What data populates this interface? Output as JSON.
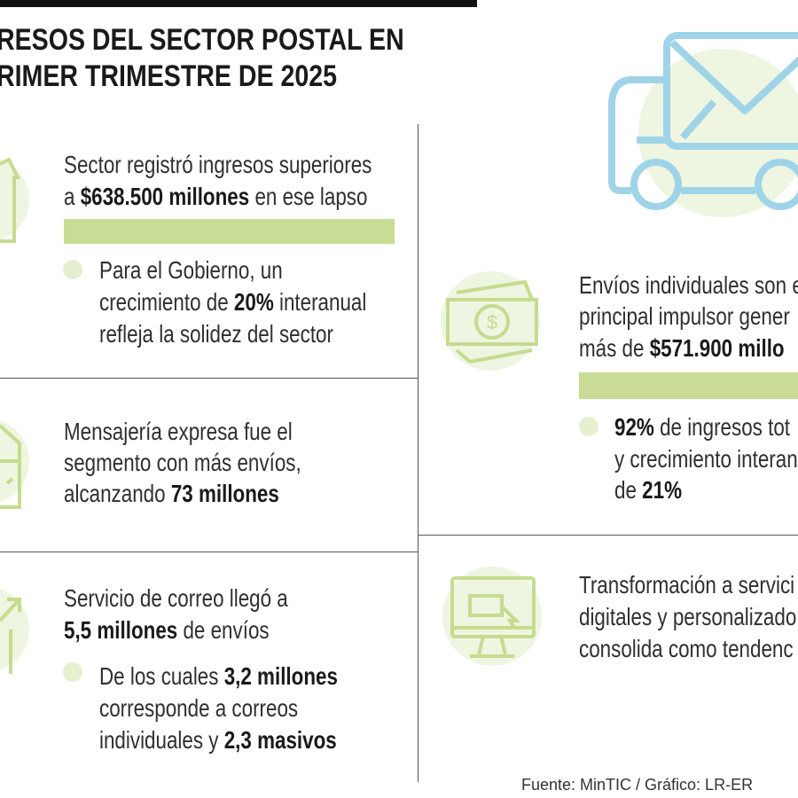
{
  "header": {
    "title_lines": [
      "RESOS DEL SECTOR POSTAL EN",
      "RIMER TRIMESTRE DE 2025"
    ]
  },
  "left": [
    {
      "lines": [
        [
          "Sector registró ingresos superiores"
        ],
        [
          "a",
          "$638.500 millones",
          "en ese lapso"
        ]
      ],
      "bullet": [
        [
          "Para el Gobierno, un"
        ],
        [
          "crecimiento de",
          "20%",
          "interanual"
        ],
        [
          "refleja la solidez del sector"
        ]
      ]
    },
    {
      "lines": [
        [
          "Mensajería expresa fue el"
        ],
        [
          "segmento con más envíos,"
        ],
        [
          "alcanzando",
          "73 millones"
        ]
      ]
    },
    {
      "lines": [
        [
          "Servicio de correo llegó a"
        ],
        [
          "5,5 millones",
          "de envíos"
        ]
      ],
      "bullet": [
        [
          "De los cuales",
          "3,2 millones"
        ],
        [
          "corresponde a correos"
        ],
        [
          "individuales y",
          "2,3 masivos"
        ]
      ]
    }
  ],
  "right": [
    {
      "lines": [
        [
          "Envíos individuales son e"
        ],
        [
          "principal impulsor gener"
        ],
        [
          "más de",
          "$571.900 millo"
        ]
      ],
      "bullet": [
        [
          "92%",
          "de ingresos tot"
        ],
        [
          "y crecimiento interan"
        ],
        [
          "de",
          "21%"
        ]
      ]
    },
    {
      "lines": [
        [
          "Transformación a servici"
        ],
        [
          "digitales y personalizado"
        ],
        [
          "consolida como tendenc"
        ]
      ]
    }
  ],
  "source": "Fuente: MinTIC / Gráfico: LR-ER"
}
